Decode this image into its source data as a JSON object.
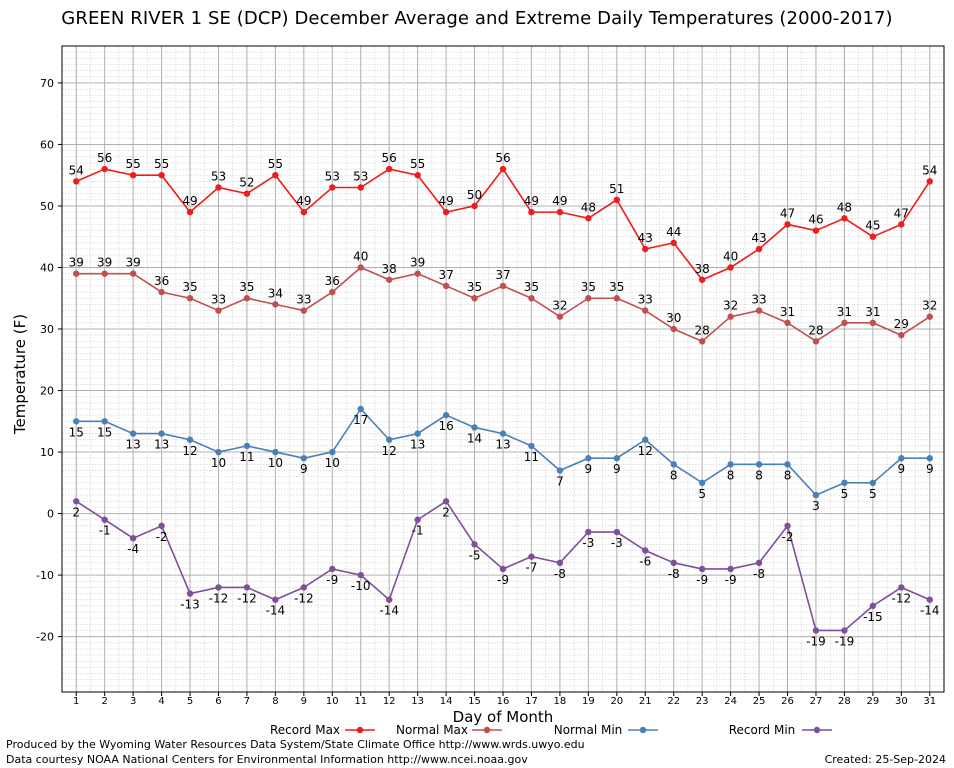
{
  "chart_data": {
    "type": "line",
    "title": "GREEN RIVER 1 SE (DCP) December Average and Extreme Daily Temperatures (2000-2017)",
    "xlabel": "Day of Month",
    "ylabel": "Temperature (F)",
    "xlim": [
      0.5,
      31.5
    ],
    "ylim": [
      -29,
      76
    ],
    "x": [
      1,
      2,
      3,
      4,
      5,
      6,
      7,
      8,
      9,
      10,
      11,
      12,
      13,
      14,
      15,
      16,
      17,
      18,
      19,
      20,
      21,
      22,
      23,
      24,
      25,
      26,
      27,
      28,
      29,
      30,
      31
    ],
    "yticks": [
      -20,
      -10,
      0,
      10,
      20,
      30,
      40,
      50,
      60,
      70
    ],
    "grid": true,
    "legend_position": "bottom",
    "series": [
      {
        "name": "Record Max",
        "color": "#ee1c1c",
        "label_pos": "above",
        "values": [
          54,
          56,
          55,
          55,
          49,
          53,
          52,
          55,
          49,
          53,
          53,
          56,
          55,
          49,
          50,
          56,
          49,
          49,
          48,
          51,
          43,
          44,
          38,
          40,
          43,
          47,
          46,
          48,
          45,
          47,
          54
        ]
      },
      {
        "name": "Normal Max",
        "color": "#c05050",
        "label_pos": "above",
        "values": [
          39,
          39,
          39,
          36,
          35,
          33,
          35,
          34,
          33,
          36,
          40,
          38,
          39,
          37,
          35,
          37,
          35,
          32,
          35,
          35,
          33,
          30,
          28,
          32,
          33,
          31,
          28,
          31,
          31,
          29,
          32
        ]
      },
      {
        "name": "Normal Min",
        "color": "#4a80b8",
        "label_pos": "below",
        "values": [
          15,
          15,
          13,
          13,
          12,
          10,
          11,
          10,
          9,
          10,
          17,
          12,
          13,
          16,
          14,
          13,
          11,
          7,
          9,
          9,
          12,
          8,
          5,
          8,
          8,
          8,
          3,
          5,
          5,
          9,
          9
        ]
      },
      {
        "name": "Record Min",
        "color": "#7f4f9a",
        "label_pos": "below",
        "values": [
          2,
          -1,
          -4,
          -2,
          -13,
          -12,
          -12,
          -14,
          -12,
          -9,
          -10,
          -14,
          -1,
          2,
          -5,
          -9,
          -7,
          -8,
          -3,
          -3,
          -6,
          -8,
          -9,
          -9,
          -8,
          -2,
          -19,
          -19,
          -15,
          -12,
          -14
        ]
      }
    ]
  },
  "footer": {
    "produced_by": "Produced by the Wyoming Water Resources Data System/State Climate Office http://www.wrds.uwyo.edu",
    "courtesy": "Data courtesy NOAA National Centers for Environmental Information http://www.ncei.noaa.gov",
    "created": "Created:  25-Sep-2024"
  }
}
